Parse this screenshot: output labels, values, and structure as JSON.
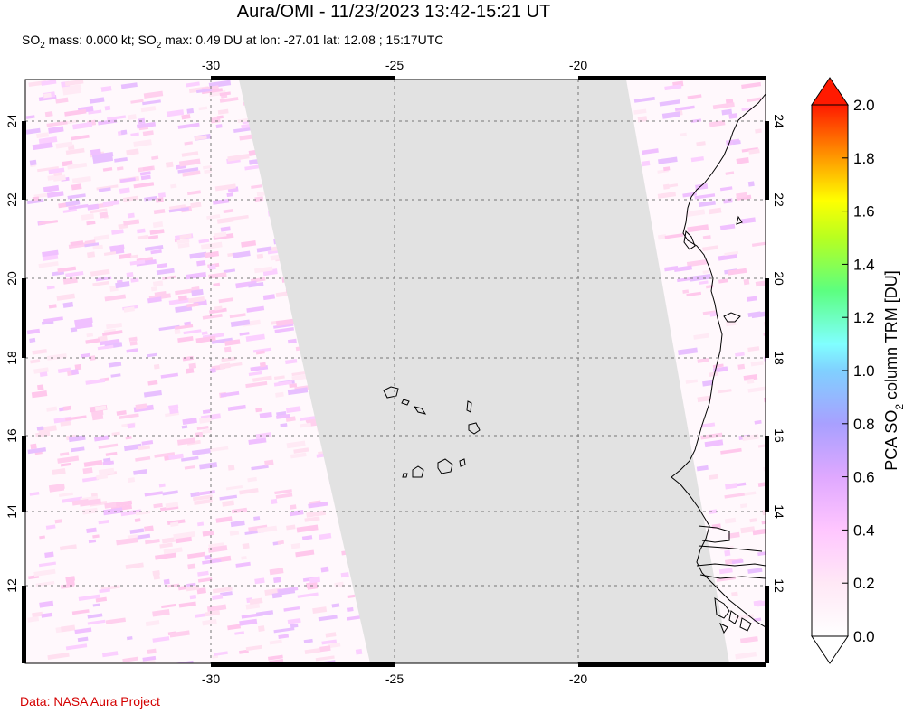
{
  "title": "Aura/OMI - 11/23/2023 13:42-15:21 UT",
  "subtitle": {
    "mass_prefix": "SO",
    "mass_sub": "2",
    "mass_text": " mass: 0.000 kt; SO",
    "max_sub": "2",
    "max_text": " max: 0.49 DU at lon: -27.01 lat: 12.08 ; 15:17UTC"
  },
  "credit": "Data: NASA Aura Project",
  "map": {
    "lon_range": [
      -35,
      -15
    ],
    "lat_range": [
      10,
      25
    ],
    "lon_ticks": [
      -30,
      -25,
      -20
    ],
    "lat_ticks": [
      12,
      14,
      16,
      18,
      20,
      22,
      24
    ],
    "lon_tick_labels": [
      "-30",
      "-25",
      "-20"
    ],
    "lat_tick_labels": [
      "12",
      "14",
      "16",
      "18",
      "20",
      "22",
      "24"
    ],
    "no_data_color": "#e2e2e2",
    "grid": true
  },
  "colorbar": {
    "label": "PCA SO",
    "label_sub": "2",
    "label_suffix": " column TRM [DU]",
    "ticks": [
      "2.0",
      "1.8",
      "1.6",
      "1.4",
      "1.2",
      "1.0",
      "0.8",
      "0.6",
      "0.4",
      "0.2",
      "0.0"
    ],
    "range": [
      0.0,
      2.0
    ],
    "colors": [
      "#ffffff",
      "#ffd0ff",
      "#d8a0ff",
      "#a0a0ff",
      "#80c0ff",
      "#80ffff",
      "#60ff80",
      "#80ff20",
      "#ffff00",
      "#ffb000",
      "#ff4000",
      "#ff0000"
    ]
  }
}
